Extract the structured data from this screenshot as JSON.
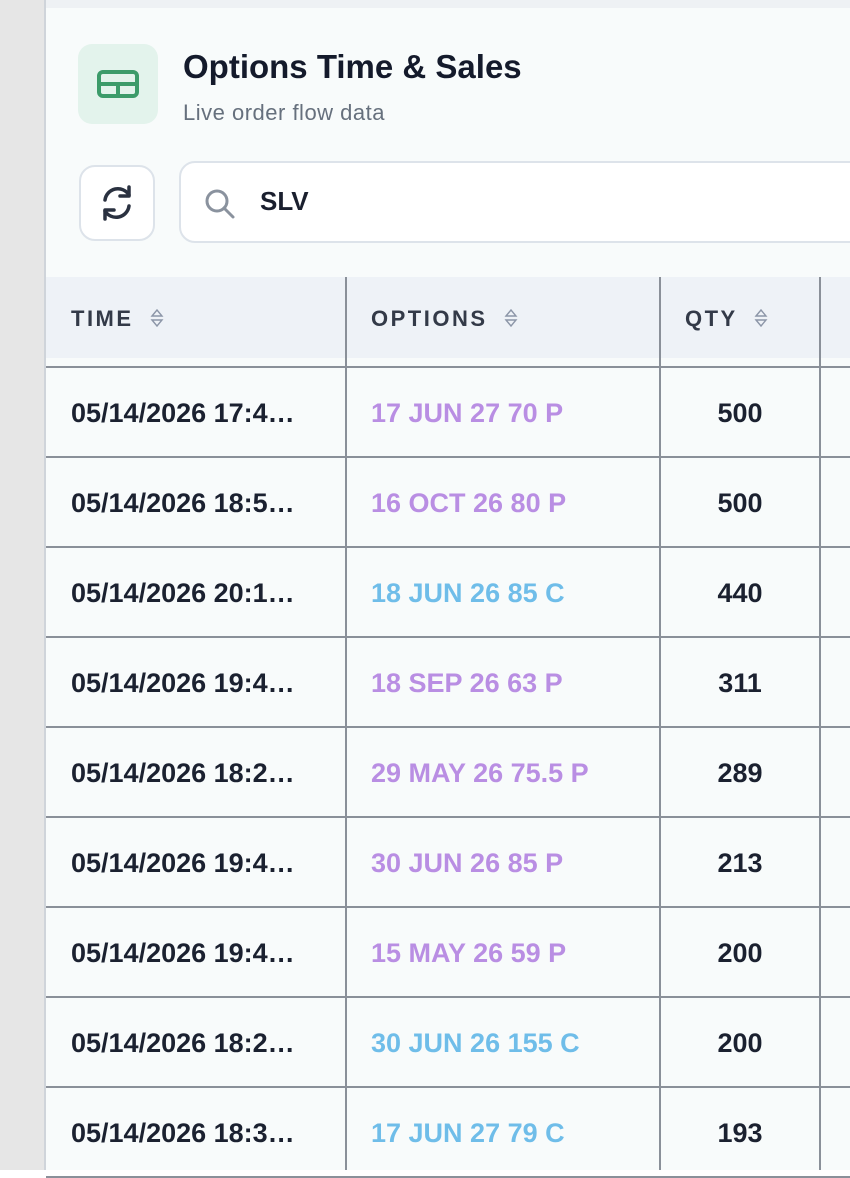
{
  "header": {
    "title": "Options Time & Sales",
    "subtitle": "Live order flow data"
  },
  "search": {
    "value": "SLV"
  },
  "table": {
    "columns": [
      "TIME",
      "OPTIONS",
      "QTY"
    ],
    "rows": [
      {
        "time": "05/14/2026 17:4…",
        "option": "17 JUN 27 70 P",
        "qty": "500",
        "color": "#b98ee3"
      },
      {
        "time": "05/14/2026 18:5…",
        "option": "16 OCT 26 80 P",
        "qty": "500",
        "color": "#b98ee3"
      },
      {
        "time": "05/14/2026 20:1…",
        "option": "18 JUN 26 85 C",
        "qty": "440",
        "color": "#6fbde9"
      },
      {
        "time": "05/14/2026 19:4…",
        "option": "18 SEP 26 63 P",
        "qty": "311",
        "color": "#b98ee3"
      },
      {
        "time": "05/14/2026 18:2…",
        "option": "29 MAY 26 75.5 P",
        "qty": "289",
        "color": "#b98ee3"
      },
      {
        "time": "05/14/2026 19:4…",
        "option": "30 JUN 26 85 P",
        "qty": "213",
        "color": "#b98ee3"
      },
      {
        "time": "05/14/2026 19:4…",
        "option": "15 MAY 26 59 P",
        "qty": "200",
        "color": "#b98ee3"
      },
      {
        "time": "05/14/2026 18:2…",
        "option": "30 JUN 26 155 C",
        "qty": "200",
        "color": "#6fbde9"
      },
      {
        "time": "05/14/2026 18:3…",
        "option": "17 JUN 27 79 C",
        "qty": "193",
        "color": "#6fbde9"
      }
    ]
  }
}
